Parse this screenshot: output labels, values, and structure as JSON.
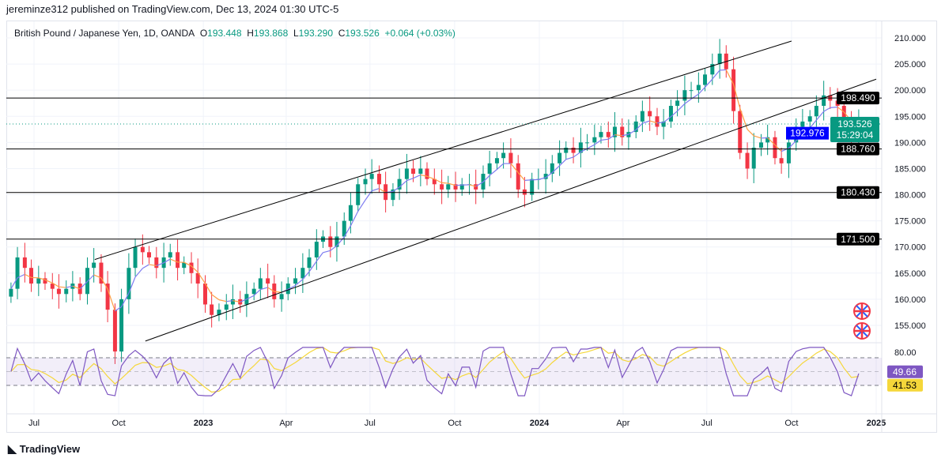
{
  "published": "jereminze312 published on TradingView.com, Dec 13, 2024 01:30 UTC-5",
  "legend": {
    "symbol": "British Pound / Japanese Yen, 1D, OANDA",
    "o_label": "O",
    "o": "193.448",
    "h_label": "H",
    "h": "193.868",
    "l_label": "L",
    "l": "193.290",
    "c_label": "C",
    "c": "193.526",
    "change": "+0.064 (+0.03%)"
  },
  "footer": {
    "logo": "TradingView"
  },
  "chart_data": {
    "type": "candlestick",
    "title": "British Pound / Japanese Yen, 1D, OANDA",
    "x_range": [
      "2022-06-06",
      "2024-12-13"
    ],
    "closes": [
      162,
      168,
      166,
      163,
      164,
      163,
      162,
      161,
      162,
      163,
      161,
      166,
      167,
      163,
      158,
      150,
      160,
      166,
      170,
      169,
      168,
      166,
      168,
      169,
      166,
      167,
      165,
      163,
      159,
      157,
      158,
      159,
      160,
      159,
      161,
      162,
      164,
      163,
      160,
      161,
      163,
      164,
      166,
      168,
      171,
      172,
      170,
      172,
      175,
      178,
      182,
      183,
      184,
      182,
      179,
      181,
      183,
      185,
      184,
      185,
      183,
      182,
      181,
      182,
      181,
      182,
      182,
      181,
      184,
      186,
      187,
      188,
      186,
      181,
      180,
      183,
      183,
      184,
      186,
      188,
      189,
      188,
      190,
      190,
      191,
      192,
      191,
      193,
      191,
      192,
      194,
      196,
      195,
      193,
      194,
      197,
      198,
      200,
      200,
      201,
      203,
      205,
      207,
      204,
      196,
      188,
      185,
      189,
      190,
      191,
      187,
      186,
      190,
      193,
      194,
      195,
      197,
      199,
      198,
      197,
      194,
      191,
      193.526
    ],
    "ylim": [
      150,
      212
    ],
    "y_ticks": [
      "155.000",
      "160.000",
      "165.000",
      "170.000",
      "175.000",
      "180.000",
      "185.000",
      "190.000",
      "195.000",
      "200.000",
      "205.000",
      "210.000"
    ],
    "x_ticks": [
      {
        "date": "2022-07-01",
        "label": "Jul"
      },
      {
        "date": "2022-10-01",
        "label": "Oct"
      },
      {
        "date": "2023-01-01",
        "label": "2023"
      },
      {
        "date": "2023-04-01",
        "label": "Apr"
      },
      {
        "date": "2023-07-01",
        "label": "Jul"
      },
      {
        "date": "2023-10-01",
        "label": "Oct"
      },
      {
        "date": "2024-01-01",
        "label": "2024"
      },
      {
        "date": "2024-04-01",
        "label": "Apr"
      },
      {
        "date": "2024-07-01",
        "label": "Jul"
      },
      {
        "date": "2024-10-01",
        "label": "Oct"
      },
      {
        "date": "2025-01-01",
        "label": "2025"
      }
    ],
    "horizontal_levels": [
      "198.490",
      "188.760",
      "180.430",
      "171.500"
    ],
    "trend_lines": [
      {
        "from": {
          "date": "2022-09-05",
          "price": 167.6
        },
        "to": {
          "date": "2024-10-01",
          "price": 209.4
        }
      },
      {
        "from": {
          "date": "2022-10-30",
          "price": 152.0
        },
        "to": {
          "date": "2025-01-01",
          "price": 202.1
        }
      }
    ],
    "last_price": {
      "value": "193.526",
      "countdown": "15:29:04"
    },
    "ma_label": "192.976",
    "rsi": {
      "levels": [
        "80.00"
      ],
      "upper_band": 70,
      "lower_band": 30,
      "rsi_value": "49.66",
      "ma_value": "41.53"
    },
    "colors": {
      "up": "#089981",
      "down": "#f23645",
      "ma_below": "#7e7cf0",
      "ma_above": "#ff9f45",
      "rsi": "#7e57c2",
      "rsi_ma": "#f5d73a",
      "last_price": "#089981",
      "ma_label_bg": "#0000ff"
    },
    "icons": [
      "uk-flag-event-icon",
      "uk-flag-event-icon"
    ]
  }
}
